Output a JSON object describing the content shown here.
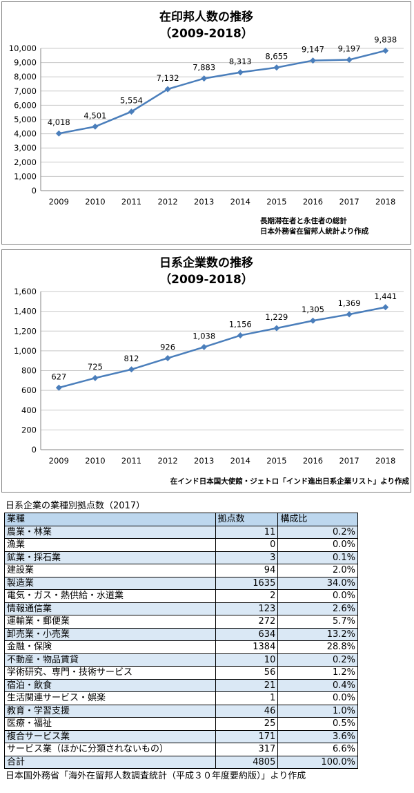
{
  "chart_data": [
    {
      "type": "line",
      "title": "在印邦人数の推移",
      "subtitle": "（2009-2018）",
      "x": [
        "2009",
        "2010",
        "2011",
        "2012",
        "2013",
        "2014",
        "2015",
        "2016",
        "2017",
        "2018"
      ],
      "values": [
        4018,
        4501,
        5554,
        7132,
        7883,
        8313,
        8655,
        9147,
        9197,
        9838
      ],
      "data_labels": [
        "4,018",
        "4,501",
        "5,554",
        "7,132",
        "7,883",
        "8,313",
        "8,655",
        "9,147",
        "9,197",
        "9,838"
      ],
      "ylim": [
        0,
        10000
      ],
      "yticks": [
        "0",
        "1,000",
        "2,000",
        "3,000",
        "4,000",
        "5,000",
        "6,000",
        "7,000",
        "8,000",
        "9,000",
        "10,000"
      ],
      "grid": true,
      "legend": "none",
      "color": "#4a7ebb",
      "notes": [
        "長期滞在者と永住者の総計",
        "日本外務省在留邦人統計より作成"
      ]
    },
    {
      "type": "line",
      "title": "日系企業数の推移",
      "subtitle": "（2009-2018）",
      "x": [
        "2009",
        "2010",
        "2011",
        "2012",
        "2013",
        "2014",
        "2015",
        "2016",
        "2017",
        "2018"
      ],
      "values": [
        627,
        725,
        812,
        926,
        1038,
        1156,
        1229,
        1305,
        1369,
        1441
      ],
      "data_labels": [
        "627",
        "725",
        "812",
        "926",
        "1,038",
        "1,156",
        "1,229",
        "1,305",
        "1,369",
        "1,441"
      ],
      "ylim": [
        0,
        1600
      ],
      "yticks": [
        "0",
        "200",
        "400",
        "600",
        "800",
        "1,000",
        "1,200",
        "1,400",
        "1,600"
      ],
      "grid": true,
      "legend": "none",
      "color": "#4a7ebb",
      "notes": [
        "在インド日本国大使館・ジェトロ「インド進出日系企業リスト」より作成"
      ]
    },
    {
      "type": "table",
      "title": "日系企業の業種別拠点数（2017）",
      "columns": [
        "業種",
        "拠点数",
        "構成比"
      ],
      "rows": [
        {
          "name": "農業・林業",
          "count": "11",
          "ratio": "0.2%"
        },
        {
          "name": "漁業",
          "count": "0",
          "ratio": "0.0%"
        },
        {
          "name": "鉱業・採石業",
          "count": "3",
          "ratio": "0.1%"
        },
        {
          "name": "建設業",
          "count": "94",
          "ratio": "2.0%"
        },
        {
          "name": "製造業",
          "count": "1635",
          "ratio": "34.0%"
        },
        {
          "name": "電気・ガス・熱供給・水道業",
          "count": "2",
          "ratio": "0.0%"
        },
        {
          "name": "情報通信業",
          "count": "123",
          "ratio": "2.6%"
        },
        {
          "name": "運輸業・郵便業",
          "count": "272",
          "ratio": "5.7%"
        },
        {
          "name": "卸売業・小売業",
          "count": "634",
          "ratio": "13.2%"
        },
        {
          "name": "金融・保険",
          "count": "1384",
          "ratio": "28.8%"
        },
        {
          "name": "不動産・物品賃貸",
          "count": "10",
          "ratio": "0.2%"
        },
        {
          "name": "学術研究、専門・技術サービス",
          "count": "56",
          "ratio": "1.2%"
        },
        {
          "name": "宿泊・飲食",
          "count": "21",
          "ratio": "0.4%"
        },
        {
          "name": "生活関連サービス・娯楽",
          "count": "1",
          "ratio": "0.0%"
        },
        {
          "name": "教育・学習支援",
          "count": "46",
          "ratio": "1.0%"
        },
        {
          "name": "医療・福祉",
          "count": "25",
          "ratio": "0.5%"
        },
        {
          "name": "複合サービス業",
          "count": "171",
          "ratio": "3.6%"
        },
        {
          "name": "サービス業（ほかに分類されないもの）",
          "count": "317",
          "ratio": "6.6%"
        },
        {
          "name": "合計",
          "count": "4805",
          "ratio": "100.0%"
        }
      ],
      "source": "日本国外務省「海外在留邦人数調査統計（平成３０年度要約版）」より作成",
      "header_color": "#bdd7ee",
      "row_shade_color": "#dae8f5"
    }
  ]
}
